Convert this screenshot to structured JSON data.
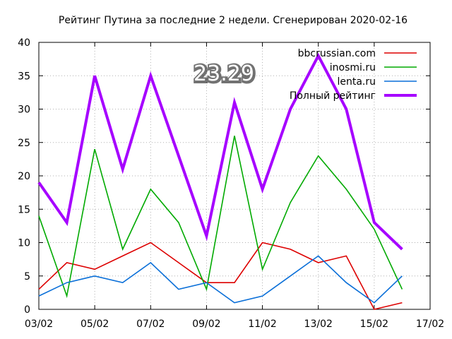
{
  "chart_data": {
    "type": "line",
    "title": "Рейтинг Путина за последние 2 недели. Сгенерирован 2020-02-16",
    "overlay_label": "23.29",
    "xlabel": "",
    "ylabel": "",
    "ylim": [
      0,
      40
    ],
    "yticks": [
      0,
      5,
      10,
      15,
      20,
      25,
      30,
      35,
      40
    ],
    "x_dates": [
      "03/02",
      "04/02",
      "05/02",
      "06/02",
      "07/02",
      "08/02",
      "09/02",
      "10/02",
      "11/02",
      "12/02",
      "13/02",
      "14/02",
      "15/02",
      "16/02"
    ],
    "xticks": [
      "03/02",
      "05/02",
      "07/02",
      "09/02",
      "11/02",
      "13/02",
      "15/02",
      "17/02"
    ],
    "grid": true,
    "legend_position": "top-right",
    "series": [
      {
        "name": "bbcrussian.com",
        "color": "#dd0000",
        "width": 1.6,
        "values": [
          3,
          7,
          6,
          8,
          10,
          7,
          4,
          4,
          10,
          9,
          7,
          8,
          0,
          1
        ]
      },
      {
        "name": "inosmi.ru",
        "color": "#00aa00",
        "width": 1.6,
        "values": [
          14,
          2,
          24,
          9,
          18,
          13,
          3,
          26,
          6,
          16,
          23,
          18,
          12,
          3
        ]
      },
      {
        "name": "lenta.ru",
        "color": "#0a6fd8",
        "width": 1.6,
        "values": [
          2,
          4,
          5,
          4,
          7,
          3,
          4,
          1,
          2,
          5,
          8,
          4,
          1,
          5
        ]
      },
      {
        "name": "Полный рейтинг",
        "color": "#a600ff",
        "width": 4,
        "values": [
          19,
          13,
          35,
          21,
          35,
          23,
          11,
          31,
          18,
          30,
          38,
          30,
          13,
          9
        ]
      }
    ]
  }
}
